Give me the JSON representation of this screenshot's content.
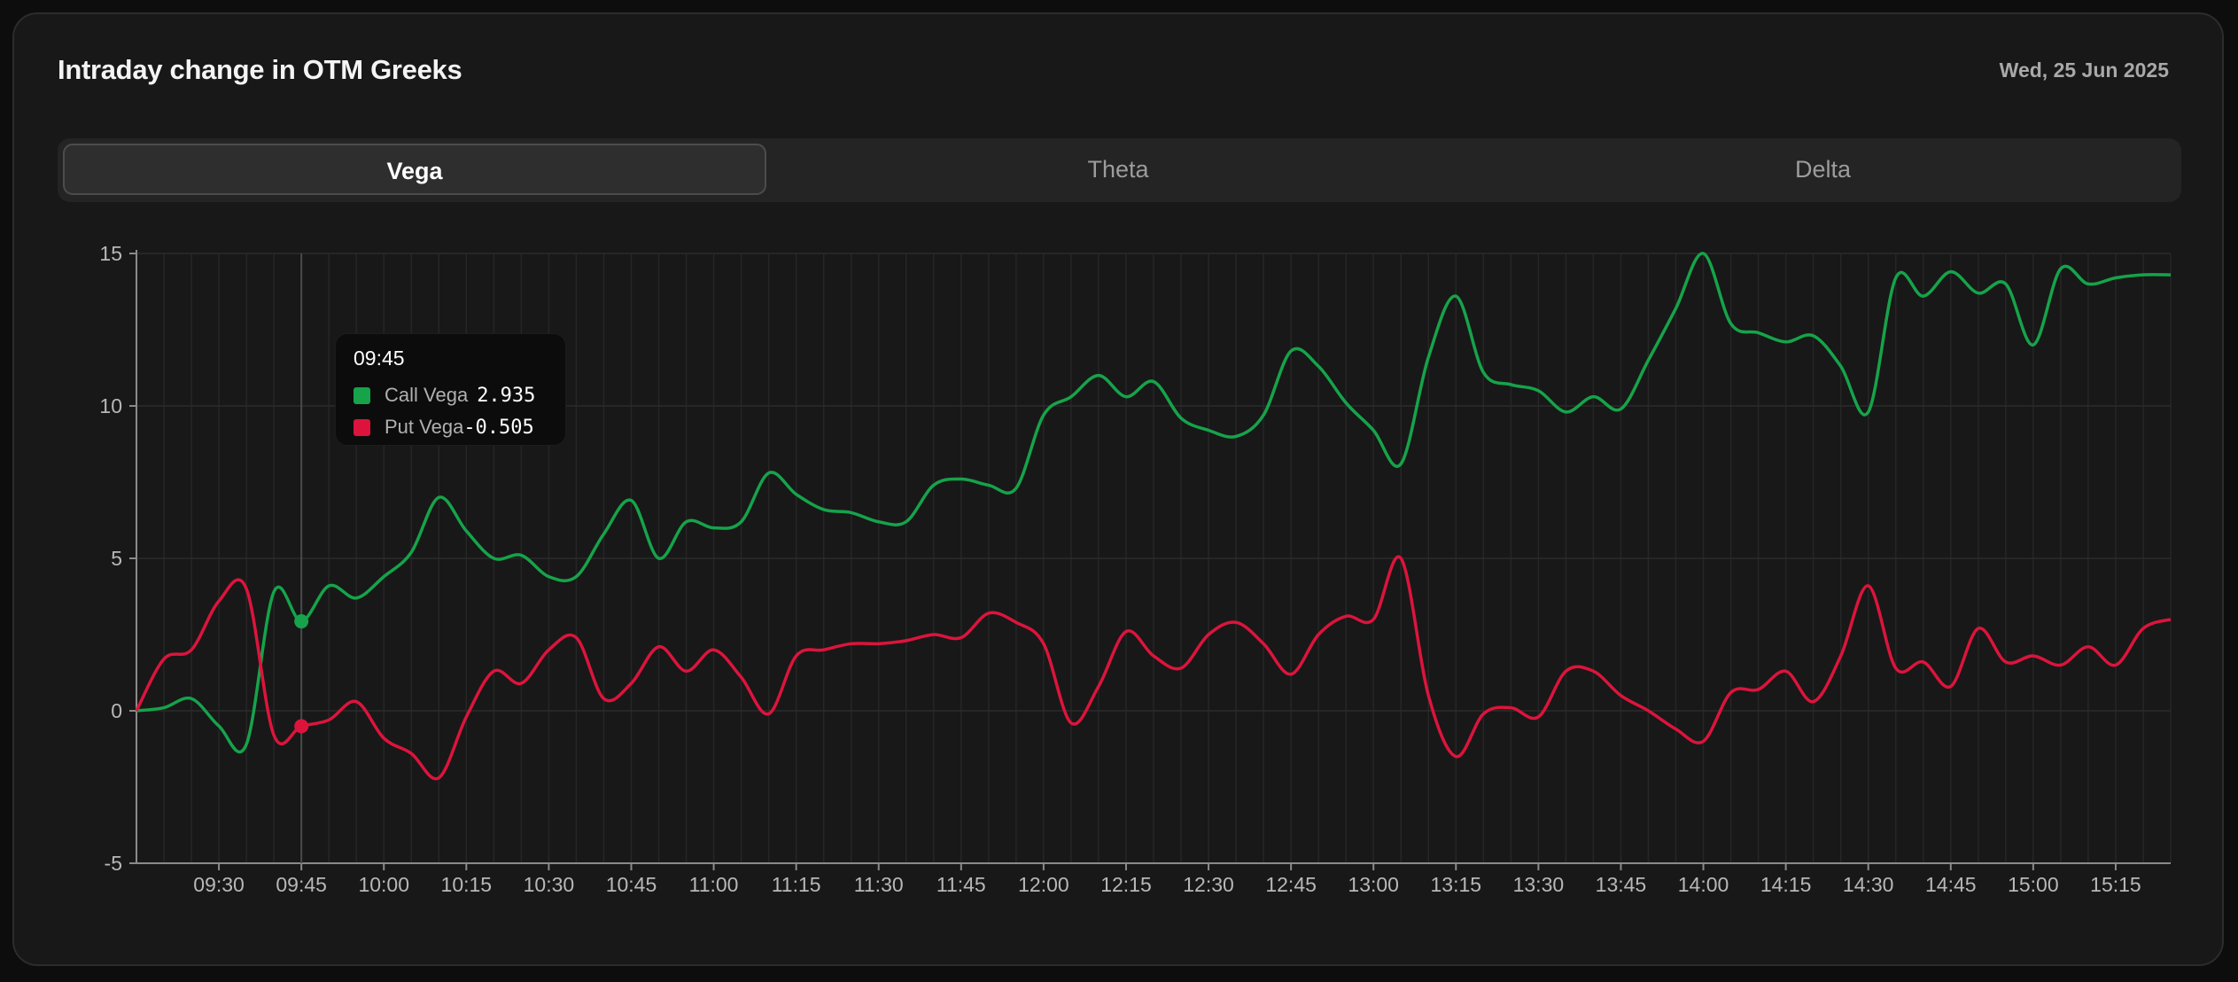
{
  "header": {
    "title": "Intraday change in OTM Greeks",
    "date": "Wed, 25 Jun 2025"
  },
  "tabs": [
    {
      "label": "Vega",
      "active": true
    },
    {
      "label": "Theta",
      "active": false
    },
    {
      "label": "Delta",
      "active": false
    }
  ],
  "colors": {
    "call": "#16a34a",
    "put": "#dc143c"
  },
  "tooltip": {
    "time": "09:45",
    "rows": [
      {
        "label": "Call Vega",
        "value": "2.935",
        "color": "#16a34a"
      },
      {
        "label": "Put Vega",
        "value": "-0.505",
        "color": "#dc143c"
      }
    ]
  },
  "chart_data": {
    "type": "line",
    "title": "",
    "xlabel": "",
    "ylabel": "",
    "ylim": [
      -5,
      15
    ],
    "yticks": [
      -5,
      0,
      5,
      10,
      15
    ],
    "x_start": "09:15",
    "x_step_minutes": 5,
    "xticks": [
      "09:30",
      "09:45",
      "10:00",
      "10:15",
      "10:30",
      "10:45",
      "11:00",
      "11:15",
      "11:30",
      "11:45",
      "12:00",
      "12:15",
      "12:30",
      "12:45",
      "13:00",
      "13:15",
      "13:30",
      "13:45",
      "14:00",
      "14:15",
      "14:30",
      "14:45",
      "15:00",
      "15:15"
    ],
    "grid": true,
    "highlight": {
      "x": "09:45",
      "call": 2.935,
      "put": -0.505
    },
    "series": [
      {
        "name": "Call Vega",
        "color": "#16a34a",
        "values": [
          0.0,
          0.1,
          0.4,
          -0.5,
          -1.1,
          3.9,
          2.935,
          4.1,
          3.7,
          4.4,
          5.2,
          7.0,
          5.9,
          5.0,
          5.1,
          4.4,
          4.4,
          5.8,
          6.9,
          5.0,
          6.2,
          6.0,
          6.2,
          7.8,
          7.1,
          6.6,
          6.5,
          6.2,
          6.2,
          7.4,
          7.6,
          7.4,
          7.3,
          9.7,
          10.3,
          11.0,
          10.3,
          10.8,
          9.6,
          9.2,
          9.0,
          9.7,
          11.8,
          11.3,
          10.1,
          9.2,
          8.1,
          11.6,
          13.6,
          11.1,
          10.7,
          10.5,
          9.8,
          10.3,
          9.9,
          11.5,
          13.2,
          15.0,
          12.7,
          12.4,
          12.1,
          12.3,
          11.3,
          9.8,
          14.2,
          13.6,
          14.4,
          13.7,
          14.0,
          12.0,
          14.5,
          14.0,
          14.2,
          14.3,
          14.3
        ]
      },
      {
        "name": "Put Vega",
        "color": "#dc143c",
        "values": [
          0.0,
          1.7,
          2.0,
          3.6,
          4.0,
          -0.8,
          -0.505,
          -0.3,
          0.3,
          -0.9,
          -1.4,
          -2.2,
          -0.2,
          1.3,
          0.9,
          2.0,
          2.4,
          0.4,
          0.9,
          2.1,
          1.3,
          2.0,
          1.1,
          -0.1,
          1.8,
          2.0,
          2.2,
          2.2,
          2.3,
          2.5,
          2.4,
          3.2,
          2.9,
          2.2,
          -0.4,
          0.8,
          2.6,
          1.8,
          1.4,
          2.5,
          2.9,
          2.2,
          1.2,
          2.5,
          3.1,
          3.0,
          5.0,
          0.5,
          -1.5,
          -0.1,
          0.1,
          -0.2,
          1.3,
          1.3,
          0.5,
          0.0,
          -0.6,
          -1.0,
          0.6,
          0.7,
          1.3,
          0.3,
          1.8,
          4.1,
          1.4,
          1.6,
          0.8,
          2.7,
          1.6,
          1.8,
          1.5,
          2.1,
          1.5,
          2.7,
          3.0
        ]
      }
    ]
  }
}
